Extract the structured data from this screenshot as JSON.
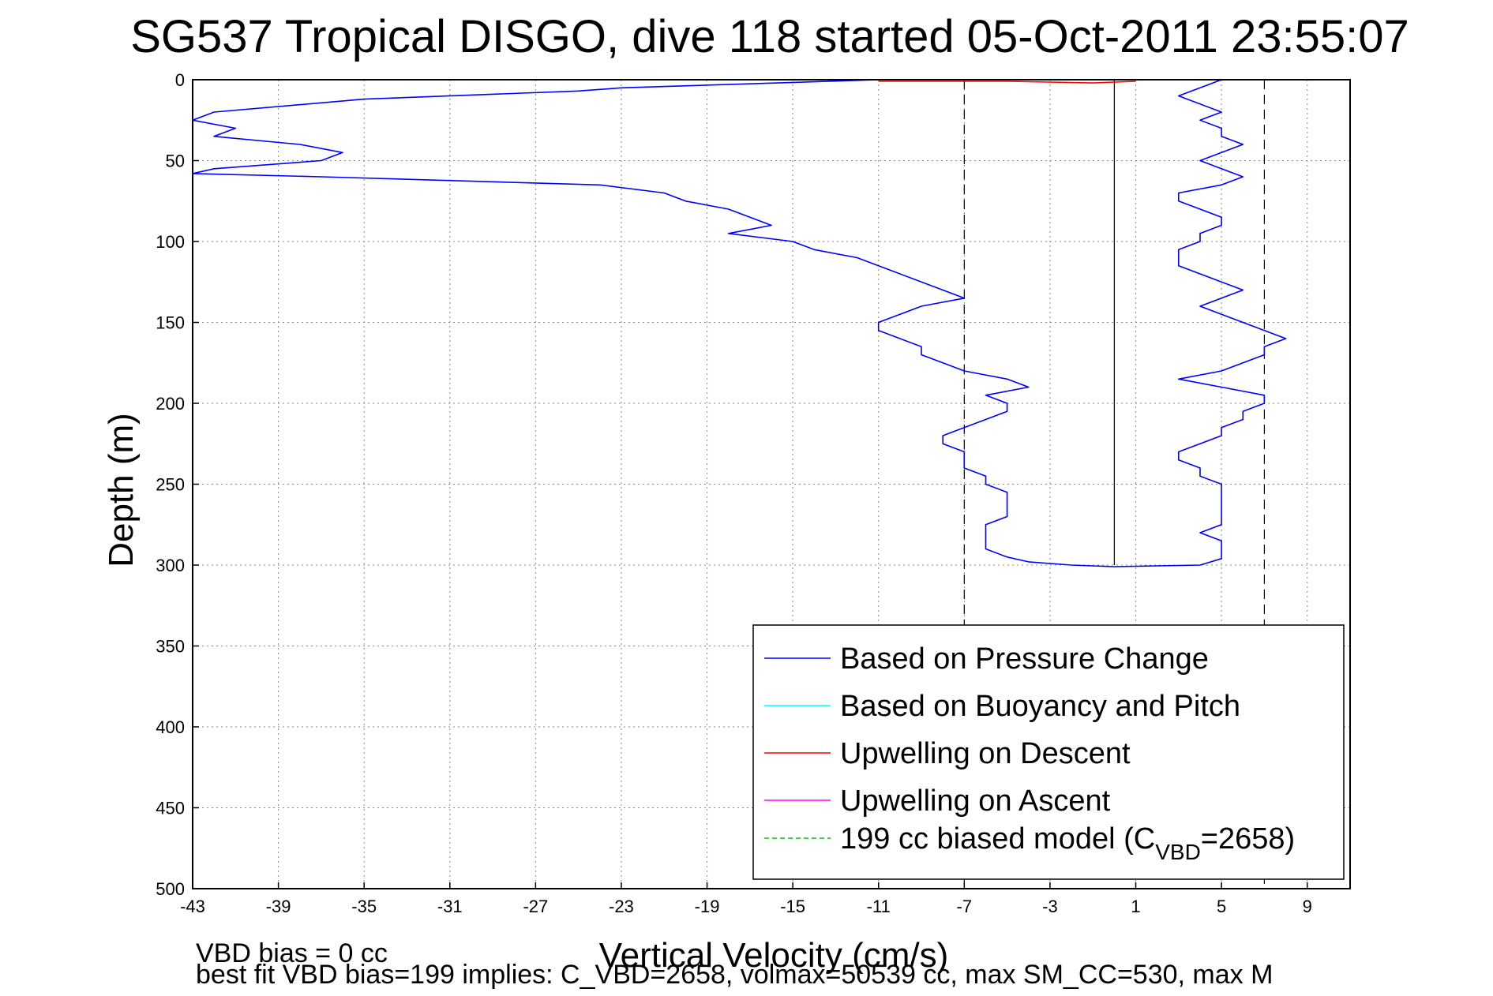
{
  "chart_data": {
    "type": "line",
    "title": "SG537 Tropical DISGO, dive 118 started 05-Oct-2011 23:55:07",
    "xlabel": "Vertical Velocity (cm/s)",
    "ylabel": "Depth (m)",
    "xlim": [
      -43,
      11
    ],
    "ylim": [
      0,
      500
    ],
    "y_reversed": true,
    "grid": true,
    "legend_position": "bottom-right",
    "x_ticks": [
      "-43",
      "-39",
      "-35",
      "-31",
      "-27",
      "-23",
      "-19",
      "-15",
      "-11",
      "-7",
      "-3",
      "1",
      "5",
      "9"
    ],
    "y_ticks": [
      "0",
      "50",
      "100",
      "150",
      "200",
      "250",
      "300",
      "350",
      "400",
      "450",
      "500"
    ],
    "legend": [
      {
        "label": "Based on Pressure Change",
        "color": "#0000ff"
      },
      {
        "label": "Based on Buoyancy and Pitch",
        "color": "#00ffff"
      },
      {
        "label": "Upwelling on Descent",
        "color": "#ff0000"
      },
      {
        "label": "Upwelling on Ascent",
        "color": "#ff00ff"
      },
      {
        "label": "199 cc biased model (C",
        "sub": "VBD",
        "suffix": "=2658)",
        "color": "#00cc00",
        "dashed": true
      }
    ],
    "reference_lines": {
      "solid_x": 0,
      "dashed_x": [
        -7,
        7
      ],
      "depth_range": [
        0,
        300
      ]
    },
    "series": [
      {
        "name": "Based on Pressure Change",
        "color": "#0000ff",
        "segment": "descent",
        "points": [
          [
            -11,
            0
          ],
          [
            -23,
            5
          ],
          [
            -25,
            7
          ],
          [
            -35,
            12
          ],
          [
            -42,
            20
          ],
          [
            -43,
            25
          ],
          [
            -41,
            30
          ],
          [
            -42,
            35
          ],
          [
            -38,
            40
          ],
          [
            -36,
            45
          ],
          [
            -37,
            50
          ],
          [
            -42,
            55
          ],
          [
            -43,
            58
          ],
          [
            -37,
            60
          ],
          [
            -24,
            65
          ],
          [
            -21,
            70
          ],
          [
            -20,
            75
          ],
          [
            -18,
            80
          ],
          [
            -17,
            85
          ],
          [
            -16,
            90
          ],
          [
            -18,
            95
          ],
          [
            -15,
            100
          ],
          [
            -14,
            105
          ],
          [
            -12,
            110
          ],
          [
            -11,
            115
          ],
          [
            -10,
            120
          ],
          [
            -9,
            125
          ],
          [
            -8,
            130
          ],
          [
            -7,
            135
          ],
          [
            -9,
            140
          ],
          [
            -10,
            145
          ],
          [
            -11,
            150
          ],
          [
            -11,
            155
          ],
          [
            -10,
            160
          ],
          [
            -9,
            165
          ],
          [
            -9,
            170
          ],
          [
            -8,
            175
          ],
          [
            -7,
            180
          ],
          [
            -5,
            185
          ],
          [
            -4,
            190
          ],
          [
            -6,
            195
          ],
          [
            -5,
            200
          ],
          [
            -5,
            205
          ],
          [
            -6,
            210
          ],
          [
            -7,
            215
          ],
          [
            -8,
            220
          ],
          [
            -8,
            225
          ],
          [
            -7,
            230
          ],
          [
            -7,
            235
          ],
          [
            -7,
            240
          ],
          [
            -6,
            245
          ],
          [
            -6,
            250
          ],
          [
            -5,
            255
          ],
          [
            -5,
            260
          ],
          [
            -5,
            265
          ],
          [
            -5,
            270
          ],
          [
            -6,
            275
          ],
          [
            -6,
            280
          ],
          [
            -6,
            285
          ],
          [
            -6,
            290
          ],
          [
            -5,
            295
          ],
          [
            -4,
            298
          ],
          [
            -2,
            300
          ],
          [
            0,
            301
          ]
        ]
      },
      {
        "name": "Based on Pressure Change",
        "color": "#0000ff",
        "segment": "ascent",
        "points": [
          [
            0,
            301
          ],
          [
            4,
            300
          ],
          [
            5,
            296
          ],
          [
            5,
            290
          ],
          [
            5,
            285
          ],
          [
            4,
            280
          ],
          [
            5,
            275
          ],
          [
            5,
            270
          ],
          [
            5,
            265
          ],
          [
            5,
            260
          ],
          [
            5,
            255
          ],
          [
            5,
            250
          ],
          [
            4,
            245
          ],
          [
            4,
            240
          ],
          [
            3,
            235
          ],
          [
            3,
            230
          ],
          [
            4,
            225
          ],
          [
            5,
            220
          ],
          [
            5,
            215
          ],
          [
            6,
            210
          ],
          [
            6,
            205
          ],
          [
            7,
            200
          ],
          [
            7,
            195
          ],
          [
            5,
            190
          ],
          [
            3,
            185
          ],
          [
            5,
            180
          ],
          [
            6,
            175
          ],
          [
            7,
            170
          ],
          [
            7,
            165
          ],
          [
            8,
            160
          ],
          [
            7,
            155
          ],
          [
            6,
            150
          ],
          [
            5,
            145
          ],
          [
            4,
            140
          ],
          [
            5,
            135
          ],
          [
            6,
            130
          ],
          [
            5,
            125
          ],
          [
            4,
            120
          ],
          [
            3,
            115
          ],
          [
            3,
            110
          ],
          [
            3,
            105
          ],
          [
            4,
            100
          ],
          [
            4,
            95
          ],
          [
            5,
            90
          ],
          [
            5,
            85
          ],
          [
            4,
            80
          ],
          [
            3,
            75
          ],
          [
            3,
            70
          ],
          [
            5,
            65
          ],
          [
            6,
            60
          ],
          [
            5,
            55
          ],
          [
            4,
            50
          ],
          [
            5,
            45
          ],
          [
            6,
            40
          ],
          [
            5,
            35
          ],
          [
            5,
            30
          ],
          [
            4,
            25
          ],
          [
            5,
            20
          ],
          [
            4,
            15
          ],
          [
            3,
            10
          ],
          [
            4,
            5
          ],
          [
            5,
            0
          ]
        ]
      },
      {
        "name": "Upwelling on Descent",
        "color": "#ff0000",
        "points": [
          [
            -11,
            1
          ],
          [
            -5,
            1
          ],
          [
            -1,
            2
          ],
          [
            1,
            1
          ]
        ]
      }
    ]
  },
  "footer": {
    "line1": "VBD bias = 0 cc",
    "line2": "best fit VBD bias=199 implies: C_VBD=2658, volmax=50539 cc, max SM_CC=530, max M"
  }
}
